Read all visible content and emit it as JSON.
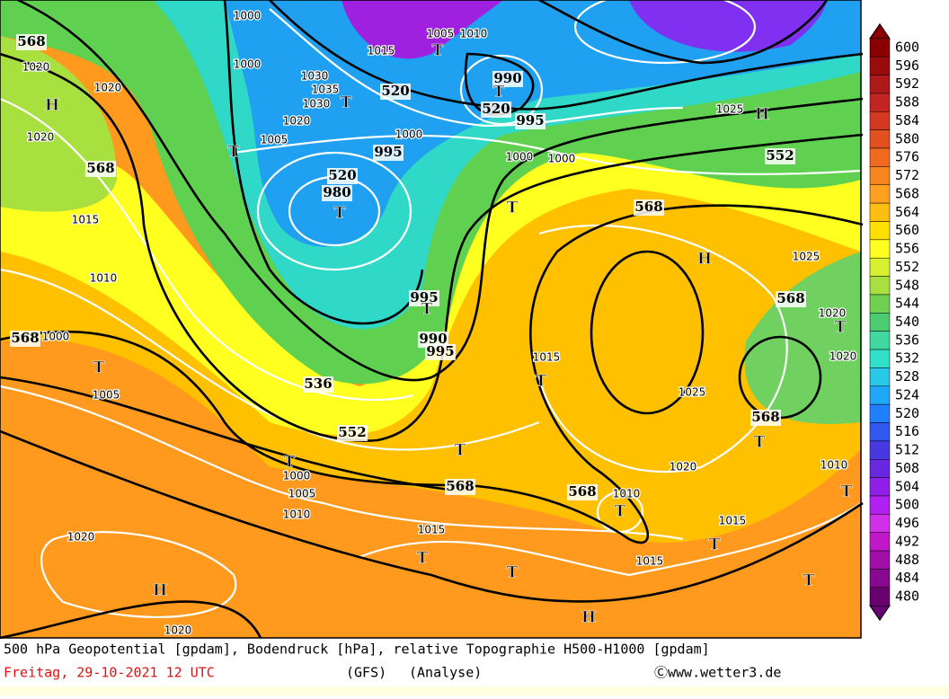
{
  "map_labels": [
    "568",
    "1020",
    "H",
    "1020",
    "1020",
    "568",
    "1015",
    "1010",
    "568",
    "1000",
    "T",
    "1005",
    "1000",
    "1000",
    "1030",
    "1035",
    "1030",
    "1020",
    "T",
    "1005",
    "T",
    "1015",
    "520",
    "1005",
    "1010",
    "T",
    "990",
    "T",
    "520",
    "995",
    "1000",
    "995",
    "1000",
    "1000",
    "520",
    "980",
    "T",
    "1025",
    "H",
    "552",
    "T",
    "568",
    "H",
    "1025",
    "568",
    "1020",
    "T",
    "1020",
    "1015",
    "T",
    "1025",
    "568",
    "T",
    "1010",
    "T",
    "536",
    "552",
    "T",
    "1000",
    "1005",
    "1010",
    "T",
    "568",
    "568",
    "1010",
    "T",
    "1020",
    "1015",
    "T",
    "1015",
    "T",
    "1015",
    "T",
    "1020",
    "H",
    "1020",
    "T",
    "H",
    "995",
    "T",
    "990",
    "995"
  ],
  "colorbar": {
    "ticks": [
      600,
      596,
      592,
      588,
      584,
      580,
      576,
      572,
      568,
      564,
      560,
      556,
      552,
      548,
      544,
      540,
      536,
      532,
      528,
      524,
      520,
      516,
      512,
      508,
      504,
      500,
      496,
      492,
      488,
      484,
      480
    ],
    "colors": [
      "#8a0000",
      "#9a0c0c",
      "#ae1a1a",
      "#c22424",
      "#d43820",
      "#e25020",
      "#f06a20",
      "#f88420",
      "#ffa020",
      "#ffbe10",
      "#ffe000",
      "#ffff20",
      "#d8f030",
      "#a8e040",
      "#70d050",
      "#4ccc70",
      "#40d8a0",
      "#30e0c8",
      "#28c8e8",
      "#20a8f8",
      "#2080ff",
      "#3058f0",
      "#4838e0",
      "#6828e0",
      "#9020e8",
      "#b020f0",
      "#d030e8",
      "#c018c8",
      "#a010a8",
      "#880890",
      "#680070"
    ]
  },
  "footer": {
    "line1": "500 hPa Geopotential [gpdam], Bodendruck [hPa], relative Topographie H500-H1000 [gpdam]",
    "date": "Freitag, 29-10-2021  12 UTC",
    "model": "(GFS)",
    "run": "(Analyse)",
    "credit": "Ⓒwww.wetter3.de"
  }
}
